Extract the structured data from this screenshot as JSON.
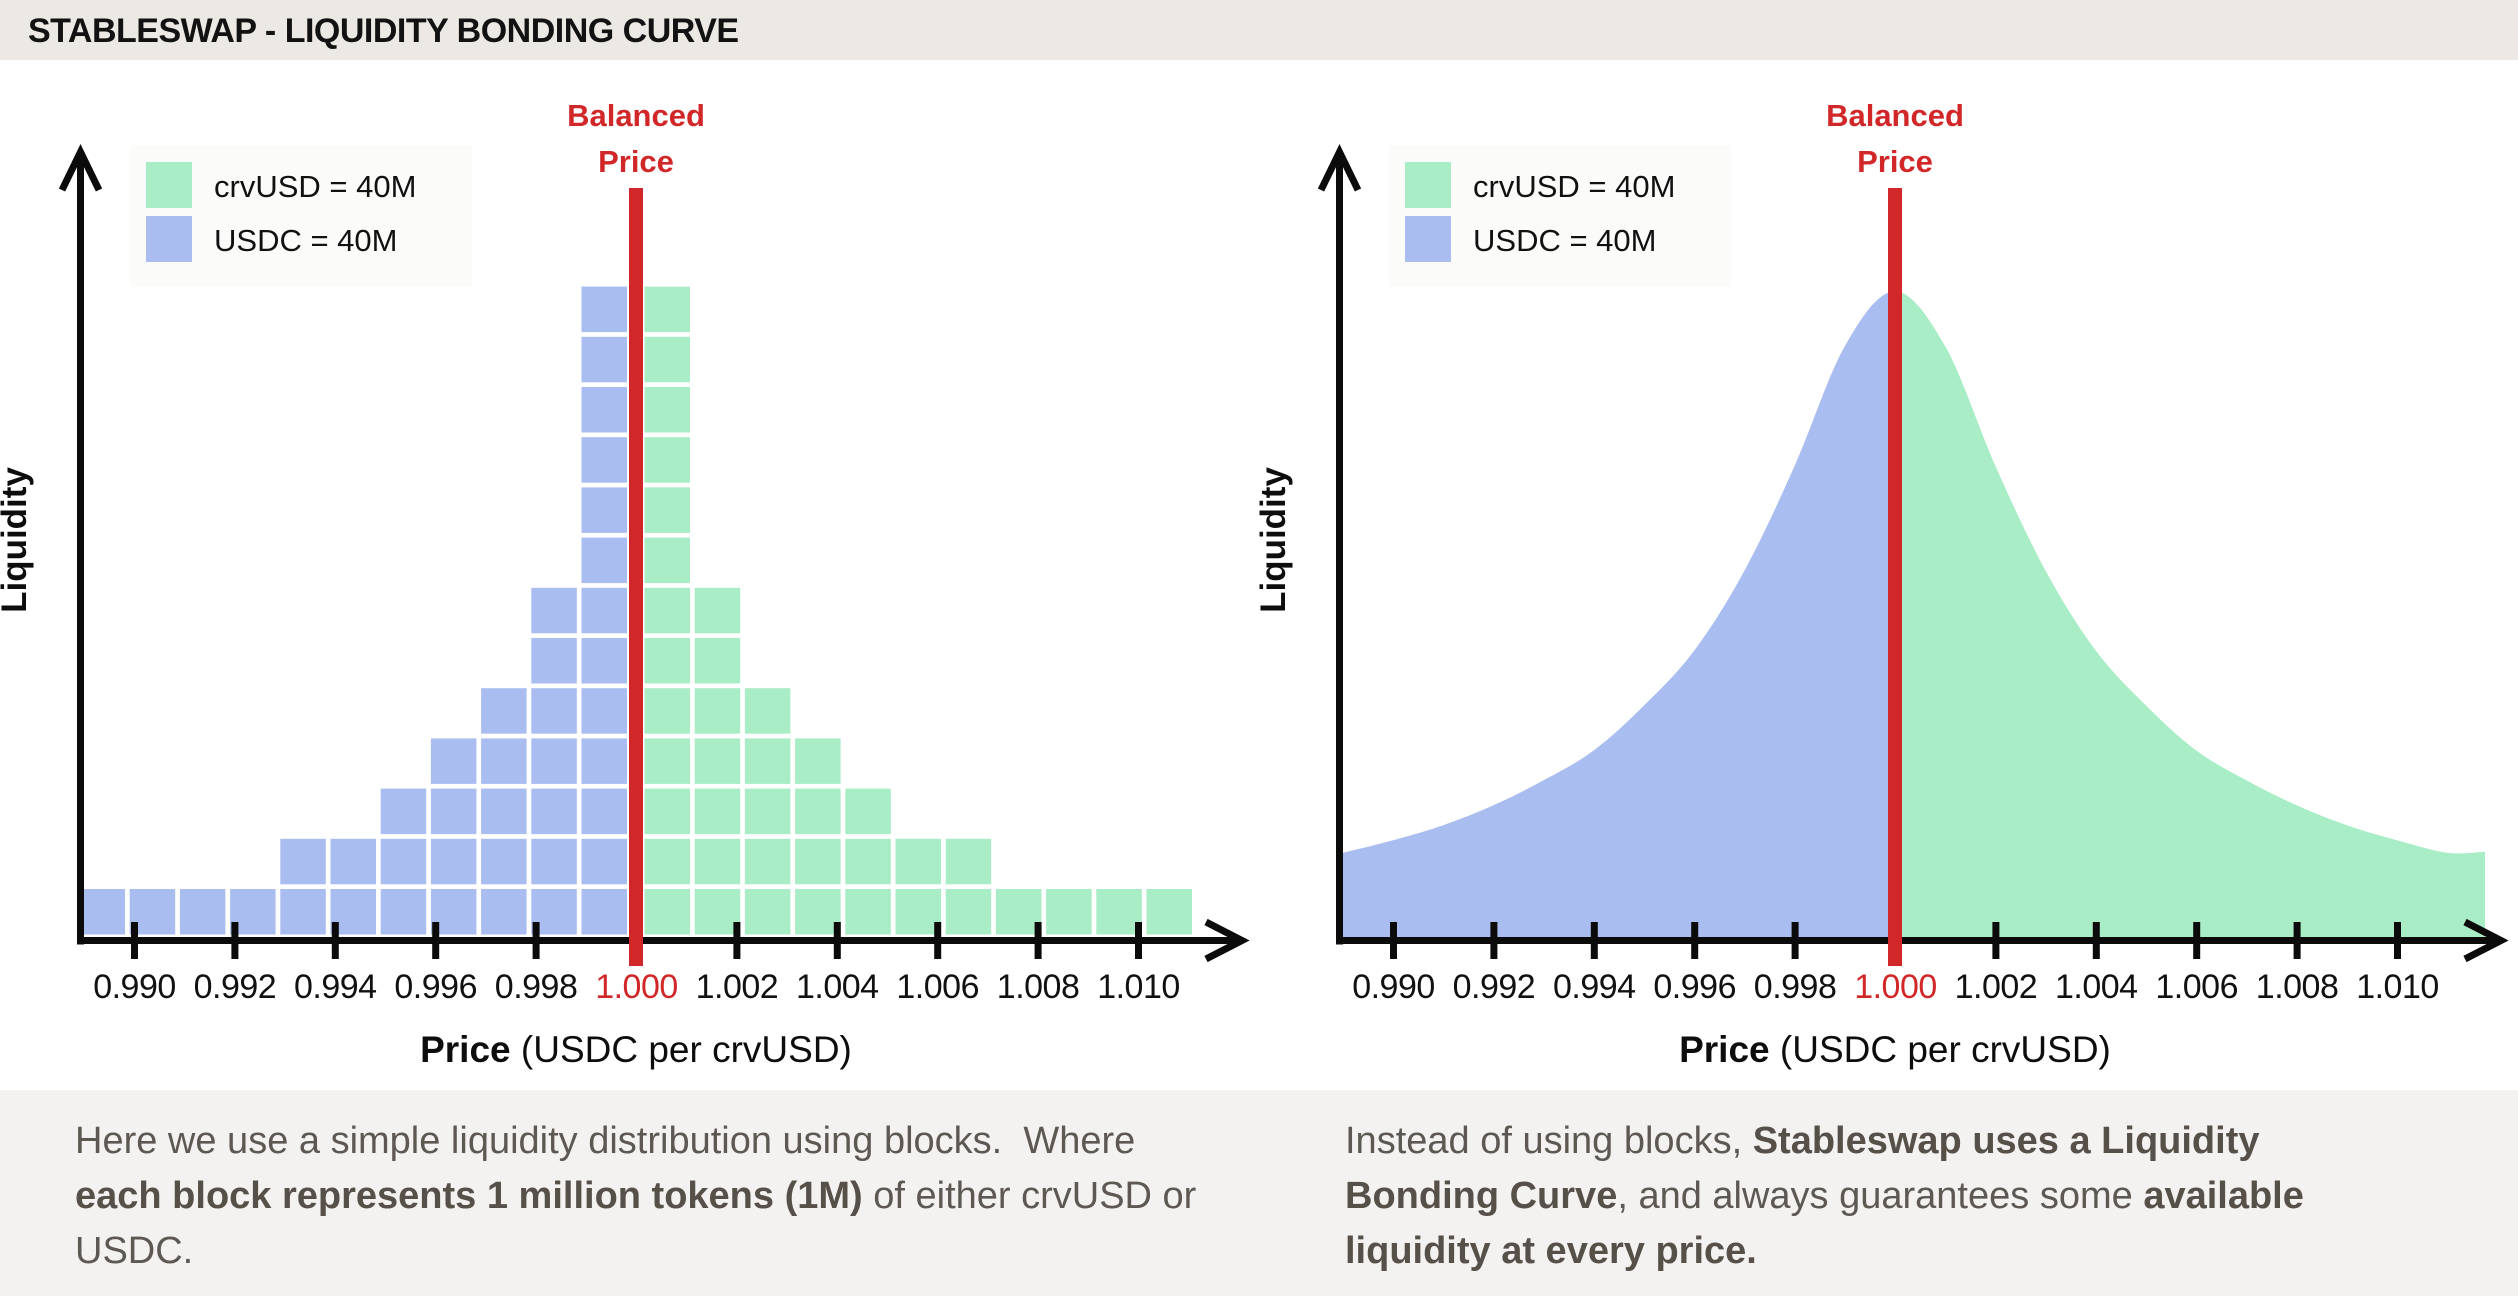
{
  "page": {
    "title": "STABLESWAP - LIQUIDITY BONDING CURVE"
  },
  "colors": {
    "header_bg": "#ece9e4",
    "footer_bg": "#f4f2f1",
    "usdc_blue": "#aabdf0",
    "crvusd_green": "#a9edc6",
    "accent_red": "#d22728",
    "axis_black": "#0b0b0b",
    "legend_bg": "#fbfbfa",
    "paragraph_gray": "#5e5853"
  },
  "charts": [
    {
      "id": "left",
      "kind": "blocks",
      "ylabel": "Liquidity",
      "xlabel_bold": "Price",
      "xlabel_rest": " (USDC per crvUSD)",
      "annotation_line1": "Balanced",
      "annotation_line2": "Price",
      "balanced_tick": "1.000",
      "legend": [
        {
          "label": "crvUSD = 40M",
          "color_key": "crvusd_green"
        },
        {
          "label": "USDC = 40M",
          "color_key": "usdc_blue"
        }
      ],
      "x_ticks": [
        "0.990",
        "0.992",
        "0.994",
        "0.996",
        "0.998",
        "1.000",
        "1.002",
        "1.004",
        "1.006",
        "1.008",
        "1.010"
      ],
      "red_tick_index": 5
    },
    {
      "id": "right",
      "kind": "curve",
      "ylabel": "Liquidity",
      "xlabel_bold": "Price",
      "xlabel_rest": " (USDC per crvUSD)",
      "annotation_line1": "Balanced",
      "annotation_line2": "Price",
      "balanced_tick": "1.000",
      "legend": [
        {
          "label": "crvUSD = 40M",
          "color_key": "crvusd_green"
        },
        {
          "label": "USDC = 40M",
          "color_key": "usdc_blue"
        }
      ],
      "x_ticks": [
        "0.990",
        "0.992",
        "0.994",
        "0.996",
        "0.998",
        "1.000",
        "1.002",
        "1.004",
        "1.006",
        "1.008",
        "1.010"
      ],
      "red_tick_index": 5
    }
  ],
  "chart_data": [
    {
      "type": "bar",
      "title": "Simple liquidity distribution using blocks",
      "xlabel": "Price (USDC per crvUSD)",
      "ylabel": "Liquidity",
      "x_tick_labels": [
        0.99,
        0.992,
        0.994,
        0.996,
        0.998,
        1.0,
        1.002,
        1.004,
        1.006,
        1.008,
        1.01
      ],
      "bucket_width": 0.001,
      "block_unit": "1 block = 1 million tokens (1M)",
      "balanced_price": 1.0,
      "annotation": "Balanced Price",
      "ylim": [
        0,
        13
      ],
      "series": [
        {
          "name": "USDC = 40M",
          "color": "#aabdf0",
          "total_blocks": 40,
          "bucket_starts": [
            0.989,
            0.99,
            0.991,
            0.992,
            0.993,
            0.994,
            0.995,
            0.996,
            0.997,
            0.998,
            0.999
          ],
          "heights": [
            1,
            1,
            1,
            1,
            2,
            2,
            3,
            4,
            5,
            7,
            13
          ]
        },
        {
          "name": "crvUSD = 40M",
          "color": "#a9edc6",
          "total_blocks": 40,
          "bucket_starts": [
            1.0,
            1.001,
            1.002,
            1.003,
            1.004,
            1.005,
            1.006,
            1.007,
            1.008,
            1.009,
            1.01
          ],
          "heights": [
            13,
            7,
            5,
            4,
            3,
            2,
            2,
            1,
            1,
            1,
            1
          ]
        }
      ]
    },
    {
      "type": "area",
      "title": "Liquidity Bonding Curve",
      "xlabel": "Price (USDC per crvUSD)",
      "ylabel": "Liquidity",
      "x_tick_labels": [
        0.99,
        0.992,
        0.994,
        0.996,
        0.998,
        1.0,
        1.002,
        1.004,
        1.006,
        1.008,
        1.01
      ],
      "balanced_price": 1.0,
      "annotation": "Balanced Price",
      "split_at": 1.0,
      "left_series": "USDC = 40M",
      "right_series": "crvUSD = 40M",
      "ylim": [
        0,
        13
      ],
      "x": [
        0.989,
        0.99,
        0.991,
        0.992,
        0.993,
        0.994,
        0.995,
        0.996,
        0.997,
        0.998,
        0.999,
        1.0,
        1.001,
        1.002,
        1.003,
        1.004,
        1.005,
        1.006,
        1.007,
        1.008,
        1.009,
        1.01,
        1.011
      ],
      "y": [
        1.75,
        2.0,
        2.3,
        2.7,
        3.2,
        3.8,
        4.7,
        5.8,
        7.4,
        9.5,
        11.9,
        13.0,
        11.9,
        9.5,
        7.4,
        5.8,
        4.7,
        3.8,
        3.2,
        2.7,
        2.3,
        2.0,
        1.75
      ]
    }
  ],
  "footer": {
    "left_lines": [
      [
        {
          "t": "Here we use a simple liquidity distribution using blocks.  Where",
          "b": false
        }
      ],
      [
        {
          "t": "each block represents 1 million tokens (1M)",
          "b": true
        },
        {
          "t": " of either crvUSD or",
          "b": false
        }
      ],
      [
        {
          "t": "USDC.",
          "b": false
        }
      ]
    ],
    "right_lines": [
      [
        {
          "t": "Instead of using blocks, ",
          "b": false
        },
        {
          "t": "Stableswap uses a Liquidity",
          "b": true
        }
      ],
      [
        {
          "t": "Bonding Curve",
          "b": true
        },
        {
          "t": ", and always guarantees some ",
          "b": false
        },
        {
          "t": "available",
          "b": true
        }
      ],
      [
        {
          "t": "liquidity at every price.",
          "b": true
        }
      ]
    ]
  }
}
